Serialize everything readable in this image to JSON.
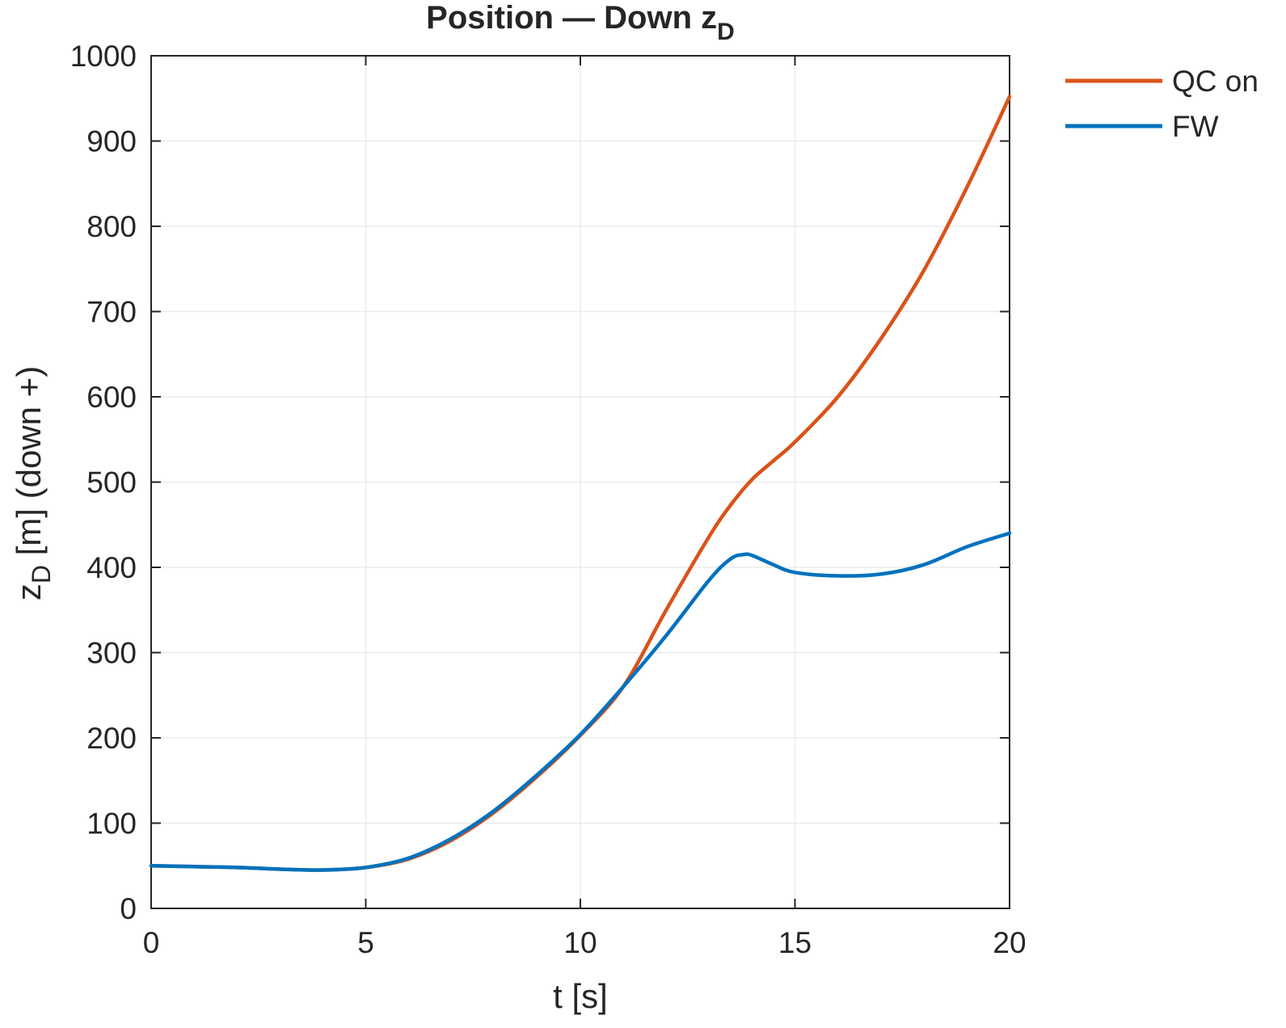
{
  "chart_data": {
    "type": "line",
    "title": "Position — Down z",
    "title_sub": "D",
    "xlabel": "t [s]",
    "ylabel_main": "z",
    "ylabel_sub": "D",
    "ylabel_rest": " [m] (down +)",
    "xlim": [
      0,
      20
    ],
    "ylim": [
      0,
      1000
    ],
    "xticks": [
      "0",
      "5",
      "10",
      "15",
      "20"
    ],
    "yticks": [
      "0",
      "100",
      "200",
      "300",
      "400",
      "500",
      "600",
      "700",
      "800",
      "900",
      "1000"
    ],
    "grid": true,
    "legend_position": "outside top-right",
    "series": [
      {
        "name": "QC on",
        "color": "#D95319",
        "x": [
          0,
          1,
          2,
          3,
          4,
          5,
          6,
          7,
          8,
          9,
          10,
          11,
          12,
          13,
          13.5,
          14,
          14.5,
          15,
          16,
          17,
          18,
          19,
          20
        ],
        "y": [
          50,
          49,
          48,
          46,
          45,
          48,
          58,
          80,
          113,
          155,
          203,
          260,
          350,
          436,
          473,
          503,
          525,
          547,
          600,
          668,
          748,
          845,
          952
        ]
      },
      {
        "name": "FW",
        "color": "#0072BD",
        "x": [
          0,
          1,
          2,
          3,
          4,
          5,
          6,
          7,
          8,
          9,
          10,
          11,
          12,
          13,
          13.5,
          13.8,
          14,
          14.5,
          15,
          16,
          17,
          18,
          19,
          20
        ],
        "y": [
          50,
          49,
          48,
          46,
          45,
          48,
          59,
          82,
          115,
          157,
          204,
          260,
          320,
          385,
          410,
          415,
          414,
          403,
          394,
          390,
          392,
          403,
          424,
          440
        ]
      }
    ]
  }
}
